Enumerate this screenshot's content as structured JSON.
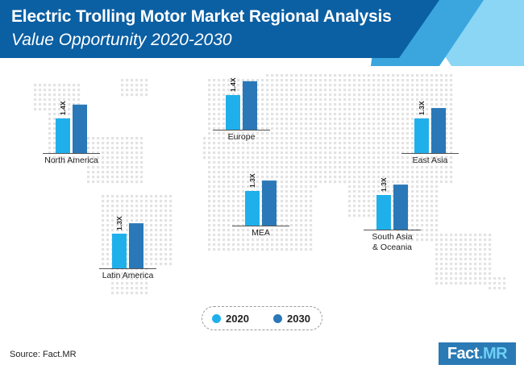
{
  "header": {
    "title": "Electric Trolling Motor Market Regional Analysis",
    "subtitle": "Value Opportunity 2020-2030"
  },
  "source": "Source: Fact.MR",
  "logo": {
    "brand": "Fact",
    "dot_suffix": ".MR"
  },
  "colors": {
    "header_dark": "#0b5fa3",
    "header_light": "#5cc4ee",
    "bar_2020": "#1fb0ec",
    "bar_2030": "#2a78b8",
    "map_dot": "#e3e3e3"
  },
  "legend": [
    {
      "label": "2020",
      "color": "#1fb0ec"
    },
    {
      "label": "2030",
      "color": "#2a78b8"
    }
  ],
  "chart_data": {
    "type": "bar",
    "title": "Electric Trolling Motor Market Regional Analysis",
    "subtitle": "Value Opportunity 2020-2030",
    "series": [
      {
        "name": "2020",
        "values": [
          1.0,
          1.0,
          1.0,
          1.0,
          1.0,
          1.0
        ]
      },
      {
        "name": "2030",
        "values": [
          1.4,
          1.4,
          1.3,
          1.3,
          1.3,
          1.3
        ]
      }
    ],
    "categories": [
      "North America",
      "Europe",
      "East Asia",
      "MEA",
      "South Asia & Oceania",
      "Latin America"
    ],
    "multipliers": [
      "1.4X",
      "1.4X",
      "1.3X",
      "1.3X",
      "1.3X",
      "1.3X"
    ],
    "regions": [
      {
        "name": "North America",
        "lines": [
          "North America"
        ],
        "multiplier": "1.4X"
      },
      {
        "name": "Europe",
        "lines": [
          "Europe"
        ],
        "multiplier": "1.4X"
      },
      {
        "name": "East Asia",
        "lines": [
          "East Asia"
        ],
        "multiplier": "1.3X"
      },
      {
        "name": "MEA",
        "lines": [
          "MEA"
        ],
        "multiplier": "1.3X"
      },
      {
        "name": "South Asia & Oceania",
        "lines": [
          "South Asia",
          "& Oceania"
        ],
        "multiplier": "1.3X"
      },
      {
        "name": "Latin America",
        "lines": [
          "Latin America"
        ],
        "multiplier": "1.3X"
      }
    ]
  }
}
